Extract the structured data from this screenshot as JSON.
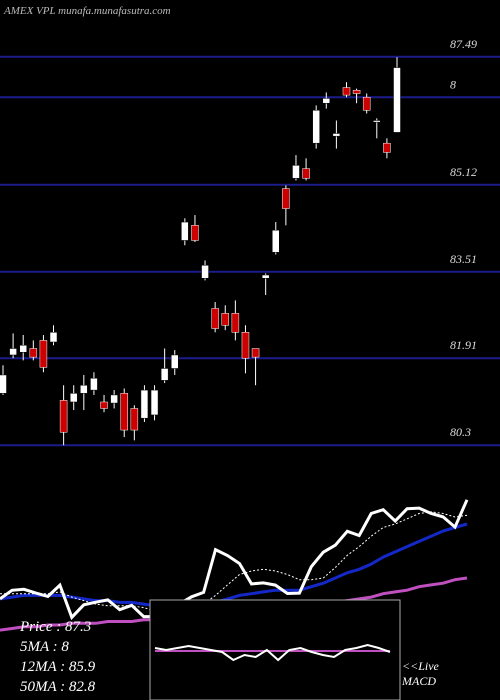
{
  "chart_data": [
    {
      "type": "candlestick",
      "title": "AMEX VPL munafa.munafasutra.com",
      "open": [
        81.26,
        81.97,
        82.02,
        82.09,
        82.24,
        82.21,
        81.13,
        81.1,
        81.26,
        81.32,
        81.1,
        81.08,
        81.26,
        80.98,
        80.8,
        80.86,
        81.5,
        81.72,
        84.09,
        84.37,
        83.39,
        82.83,
        82.74,
        82.74,
        82.39,
        82.09,
        83.39,
        83.87,
        85.05,
        85.24,
        85.42,
        85.89,
        86.63,
        86.02,
        86.92,
        86.87,
        86.74,
        86.28,
        85.89,
        86.09
      ],
      "high": [
        81.78,
        82.37,
        82.34,
        82.24,
        82.34,
        82.52,
        81.41,
        81.41,
        81.6,
        81.65,
        81.23,
        81.32,
        81.35,
        81.04,
        81.41,
        81.41,
        82.09,
        82.06,
        84.5,
        84.56,
        83.72,
        82.95,
        82.89,
        82.98,
        82.52,
        82.09,
        83.48,
        84.43,
        85.11,
        85.67,
        85.61,
        86.59,
        86.83,
        86.31,
        87.02,
        86.9,
        86.81,
        86.35,
        85.98,
        87.48
      ],
      "low": [
        81.23,
        81.91,
        81.87,
        81.87,
        81.65,
        82.15,
        80.3,
        80.95,
        80.95,
        81.23,
        80.91,
        80.98,
        80.45,
        80.39,
        80.73,
        80.76,
        81.45,
        81.6,
        84.0,
        84.06,
        83.35,
        82.39,
        82.43,
        82.24,
        81.63,
        81.41,
        83.08,
        83.83,
        84.37,
        85.2,
        85.2,
        85.79,
        86.53,
        85.79,
        86.74,
        86.63,
        86.44,
        85.98,
        85.61,
        86.09
      ],
      "close": [
        81.6,
        82.09,
        82.15,
        81.93,
        81.74,
        82.39,
        80.54,
        81.26,
        81.41,
        81.54,
        80.98,
        81.23,
        80.58,
        80.58,
        81.32,
        81.32,
        81.72,
        81.97,
        84.43,
        84.09,
        83.63,
        82.46,
        82.52,
        82.39,
        81.91,
        81.93,
        83.45,
        84.28,
        84.68,
        85.48,
        85.24,
        86.5,
        86.72,
        86.07,
        86.78,
        86.81,
        86.5,
        86.31,
        85.72,
        87.29
      ],
      "up_color": "#ffffff",
      "down_color": "#cc0000",
      "ylim": [
        80.1,
        88.3
      ],
      "yticks": [
        87.49,
        {
          "value": 86.74,
          "label": "8"
        },
        85.12,
        83.51,
        81.91,
        80.3
      ],
      "grid": true,
      "grid_color": "#1c1c8c"
    },
    {
      "type": "line",
      "ylim": [
        77,
        89
      ],
      "series": [
        {
          "name": "50MA : 82.8",
          "color": "#c050c0",
          "values": [
            79.8,
            79.9,
            80.0,
            80.0,
            80.1,
            80.1,
            80.2,
            80.2,
            80.2,
            80.3,
            80.3,
            80.3,
            80.4,
            80.4,
            80.4,
            80.5,
            80.5,
            80.6,
            80.7,
            80.8,
            80.9,
            80.9,
            81.0,
            81.0,
            81.1,
            81.1,
            81.2,
            81.3,
            81.4,
            81.5,
            81.6,
            81.7,
            81.9,
            82.0,
            82.1,
            82.3,
            82.4,
            82.5,
            82.7,
            82.8
          ]
        },
        {
          "name": "12MA : 85.9",
          "color": "#1428c8",
          "values": [
            81.6,
            81.7,
            81.8,
            81.8,
            81.8,
            81.8,
            81.7,
            81.6,
            81.5,
            81.5,
            81.4,
            81.4,
            81.3,
            81.2,
            81.2,
            81.2,
            81.2,
            81.2,
            81.4,
            81.6,
            81.8,
            81.9,
            82.0,
            82.1,
            82.1,
            82.1,
            82.3,
            82.5,
            82.8,
            83.1,
            83.3,
            83.6,
            84.0,
            84.3,
            84.6,
            84.9,
            85.2,
            85.5,
            85.7,
            85.9
          ]
        },
        {
          "name": "5MA : 8",
          "color": "#ffffff",
          "dashed": true,
          "values": [
            81.9,
            81.9,
            81.9,
            81.9,
            81.9,
            82.0,
            81.7,
            81.5,
            81.3,
            81.2,
            81.2,
            81.2,
            81.1,
            80.9,
            81.0,
            81.0,
            81.1,
            81.3,
            81.8,
            82.4,
            83.0,
            83.2,
            83.3,
            83.2,
            83.0,
            82.7,
            82.7,
            82.8,
            83.4,
            84.1,
            84.6,
            85.2,
            85.7,
            85.9,
            86.2,
            86.5,
            86.6,
            86.5,
            86.3,
            86.4
          ]
        },
        {
          "name": "Price : 87.3",
          "color": "#ffffff",
          "values": [
            81.6,
            82.09,
            82.15,
            81.93,
            81.74,
            82.39,
            80.54,
            81.26,
            81.41,
            81.54,
            80.98,
            81.23,
            80.58,
            80.58,
            81.32,
            81.32,
            81.72,
            81.97,
            84.43,
            84.09,
            83.63,
            82.46,
            82.52,
            82.39,
            81.91,
            81.93,
            83.45,
            84.28,
            84.68,
            85.48,
            85.24,
            86.5,
            86.72,
            86.07,
            86.78,
            86.81,
            86.5,
            86.31,
            85.72,
            87.29
          ]
        }
      ]
    },
    {
      "type": "line",
      "label": [
        "<<Live",
        "MACD"
      ],
      "ylim": [
        -1,
        1
      ],
      "series": [
        {
          "color": "#c050c0",
          "values": [
            -0.02,
            -0.02,
            -0.02,
            -0.02,
            -0.02,
            -0.02,
            -0.02,
            -0.02,
            -0.02,
            -0.02,
            -0.02,
            -0.02,
            -0.02,
            -0.02,
            -0.02,
            -0.02,
            -0.02,
            -0.02,
            -0.02,
            -0.02,
            -0.02,
            -0.02
          ]
        },
        {
          "color": "#ffffff",
          "values": [
            0.04,
            0,
            0.04,
            0.08,
            0.04,
            0,
            -0.04,
            -0.2,
            -0.1,
            -0.14,
            0,
            -0.2,
            0,
            0.04,
            -0.04,
            -0.1,
            -0.14,
            0,
            0.04,
            0.1,
            0.04,
            -0.04
          ]
        }
      ]
    }
  ]
}
